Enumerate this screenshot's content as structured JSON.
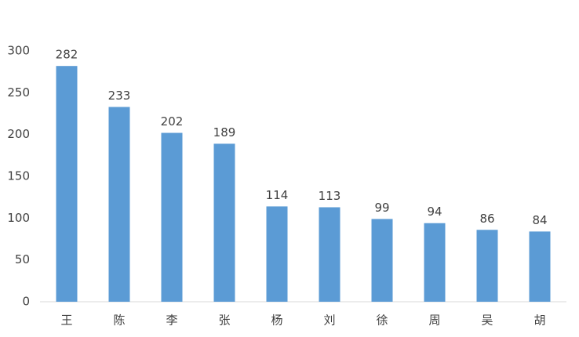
{
  "chart_data": {
    "type": "bar",
    "categories": [
      "王",
      "陈",
      "李",
      "张",
      "杨",
      "刘",
      "徐",
      "周",
      "吴",
      "胡"
    ],
    "values": [
      282,
      233,
      202,
      189,
      114,
      113,
      99,
      94,
      86,
      84
    ],
    "color": "#5b9bd5",
    "ylim": [
      0,
      300
    ],
    "yticks": [
      0,
      50,
      100,
      150,
      200,
      250,
      300
    ],
    "grid": false
  }
}
